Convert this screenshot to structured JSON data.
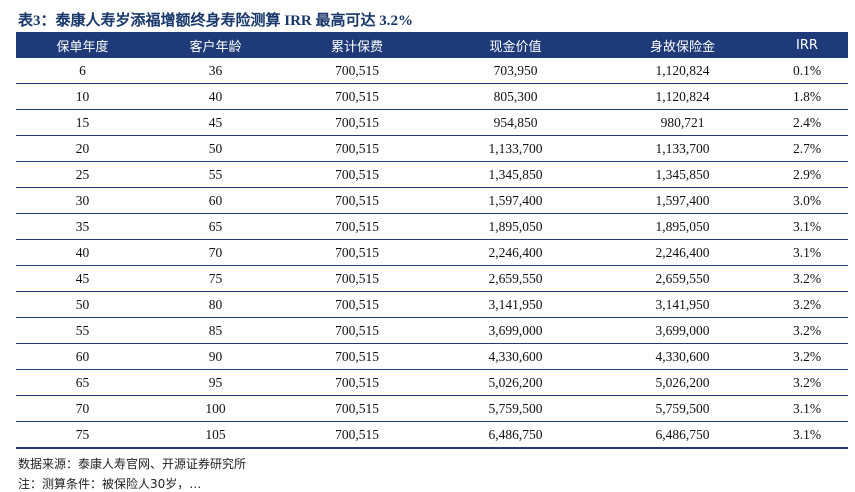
{
  "title": "表3：泰康人寿岁添福增额终身寿险测算 IRR 最高可达 3.2%",
  "table": {
    "headers": [
      "保单年度",
      "客户年龄",
      "累计保费",
      "现金价值",
      "身故保险金",
      "IRR"
    ],
    "rows": [
      [
        "6",
        "36",
        "700,515",
        "703,950",
        "1,120,824",
        "0.1%"
      ],
      [
        "10",
        "40",
        "700,515",
        "805,300",
        "1,120,824",
        "1.8%"
      ],
      [
        "15",
        "45",
        "700,515",
        "954,850",
        "980,721",
        "2.4%"
      ],
      [
        "20",
        "50",
        "700,515",
        "1,133,700",
        "1,133,700",
        "2.7%"
      ],
      [
        "25",
        "55",
        "700,515",
        "1,345,850",
        "1,345,850",
        "2.9%"
      ],
      [
        "30",
        "60",
        "700,515",
        "1,597,400",
        "1,597,400",
        "3.0%"
      ],
      [
        "35",
        "65",
        "700,515",
        "1,895,050",
        "1,895,050",
        "3.1%"
      ],
      [
        "40",
        "70",
        "700,515",
        "2,246,400",
        "2,246,400",
        "3.1%"
      ],
      [
        "45",
        "75",
        "700,515",
        "2,659,550",
        "2,659,550",
        "3.2%"
      ],
      [
        "50",
        "80",
        "700,515",
        "3,141,950",
        "3,141,950",
        "3.2%"
      ],
      [
        "55",
        "85",
        "700,515",
        "3,699,000",
        "3,699,000",
        "3.2%"
      ],
      [
        "60",
        "90",
        "700,515",
        "4,330,600",
        "4,330,600",
        "3.2%"
      ],
      [
        "65",
        "95",
        "700,515",
        "5,026,200",
        "5,026,200",
        "3.2%"
      ],
      [
        "70",
        "100",
        "700,515",
        "5,759,500",
        "5,759,500",
        "3.1%"
      ],
      [
        "75",
        "105",
        "700,515",
        "6,486,750",
        "6,486,750",
        "3.1%"
      ]
    ]
  },
  "source": "数据来源：泰康人寿官网、开源证券研究所",
  "footnote": "注：测算条件：被保险人30岁，…"
}
